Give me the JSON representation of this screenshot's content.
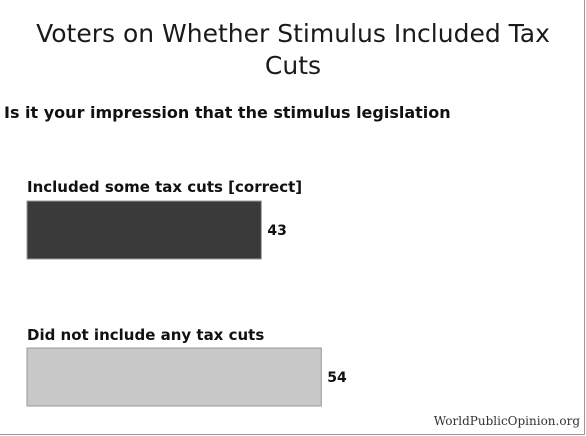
{
  "chart_data": {
    "type": "bar",
    "orientation": "horizontal",
    "title": "Voters on Whether Stimulus Included Tax Cuts",
    "subtitle": "Is it your impression that the stimulus legislation",
    "categories": [
      "Included some tax cuts [correct]",
      "Did not include any tax cuts"
    ],
    "values": [
      43,
      54
    ],
    "value_labels": [
      "43",
      "54"
    ],
    "colors": [
      "#3a3a3a",
      "#c8c8c8"
    ],
    "xlim": [
      0,
      100
    ],
    "grid": false,
    "source": "WorldPublicOpinion.org"
  }
}
